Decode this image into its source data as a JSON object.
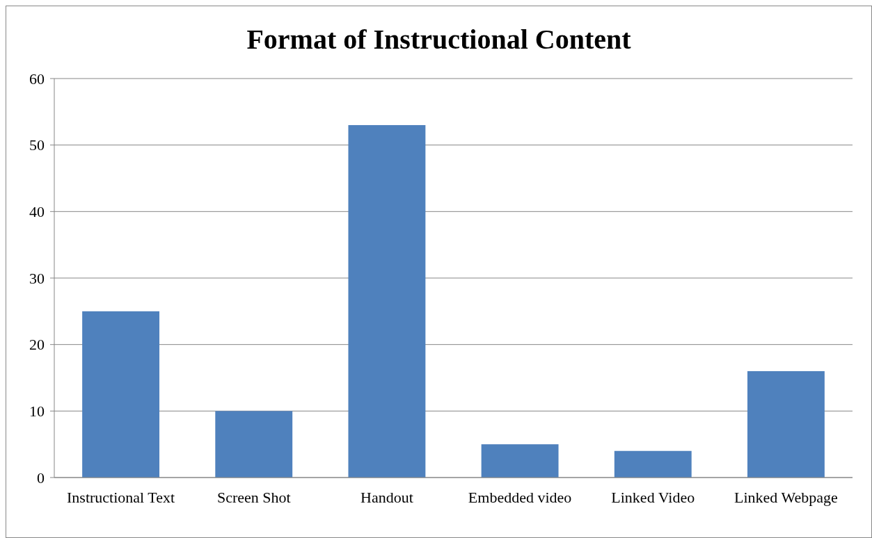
{
  "chart_data": {
    "type": "bar",
    "title": "Format of Instructional Content",
    "categories": [
      "Instructional Text",
      "Screen Shot",
      "Handout",
      "Embedded video",
      "Linked Video",
      "Linked Webpage"
    ],
    "values": [
      25,
      10,
      53,
      5,
      4,
      16
    ],
    "color": "#4f81bd",
    "ylim": [
      0,
      60
    ],
    "yticks": [
      0,
      10,
      20,
      30,
      40,
      50,
      60
    ],
    "grid": "y"
  }
}
